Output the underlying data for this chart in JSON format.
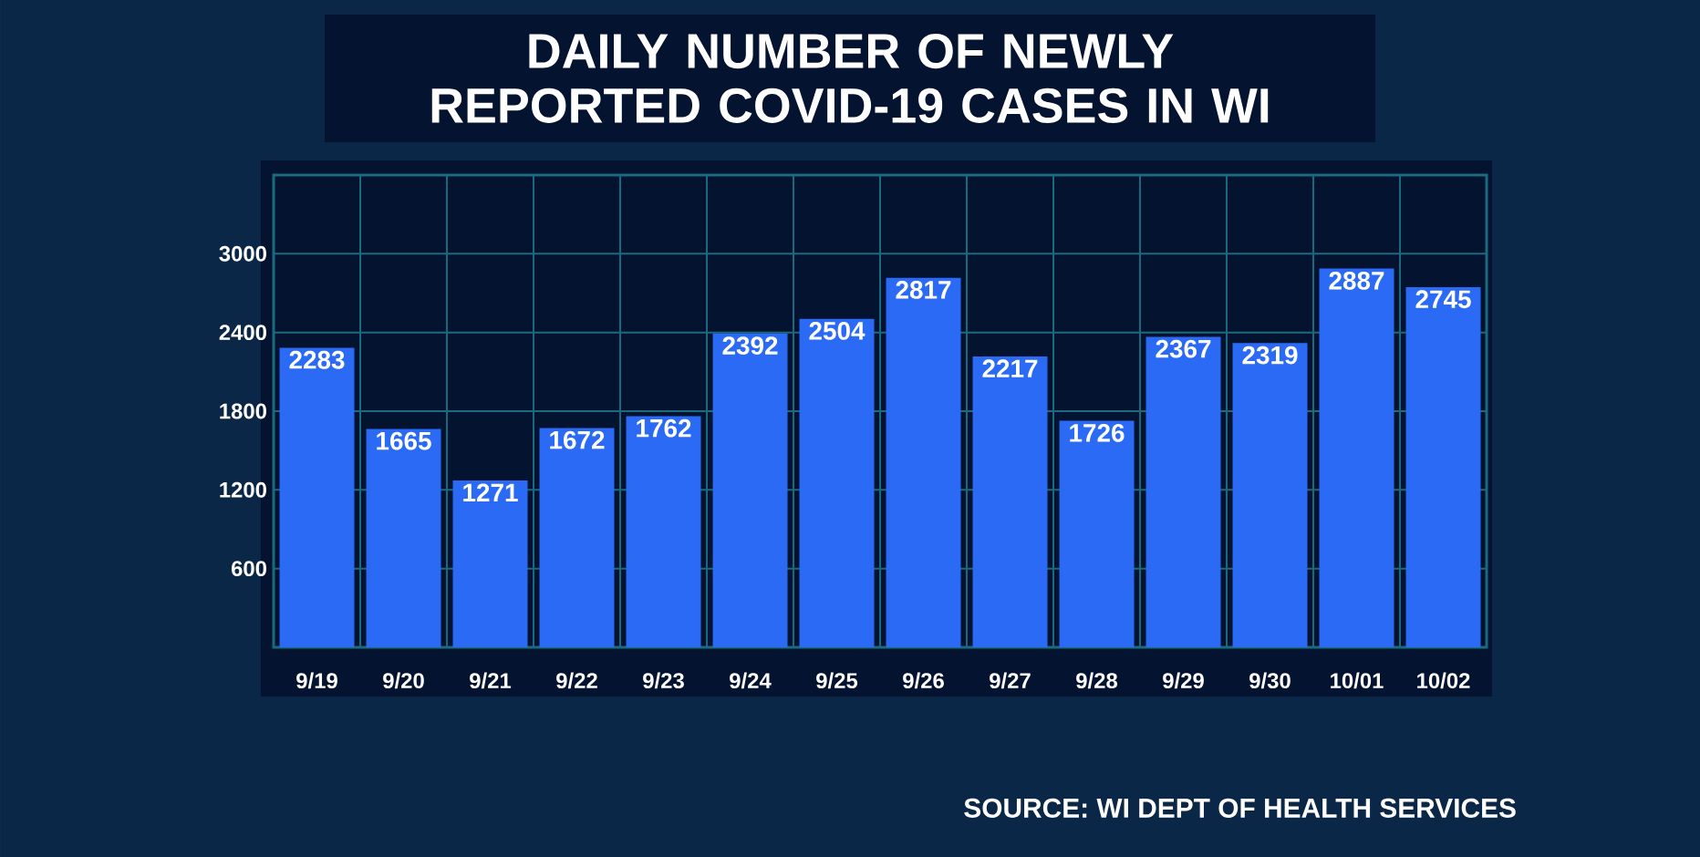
{
  "chart_data": {
    "type": "bar",
    "title": "DAILY NUMBER OF NEWLY REPORTED COVID-19 CASES IN WI",
    "categories": [
      "9/19",
      "9/20",
      "9/21",
      "9/22",
      "9/23",
      "9/24",
      "9/25",
      "9/26",
      "9/27",
      "9/28",
      "9/29",
      "9/30",
      "10/01",
      "10/02"
    ],
    "values": [
      2283,
      1665,
      1271,
      1672,
      1762,
      2392,
      2504,
      2817,
      2217,
      1726,
      2367,
      2319,
      2887,
      2745
    ],
    "color": "#2a6af5",
    "ylim": [
      0,
      3600
    ],
    "yticks": [
      600,
      1200,
      1800,
      2400,
      3000
    ],
    "grid": true,
    "data_labels": true,
    "annotations": [
      "SOURCE: WI DEPT OF HEALTH SERVICES"
    ]
  }
}
